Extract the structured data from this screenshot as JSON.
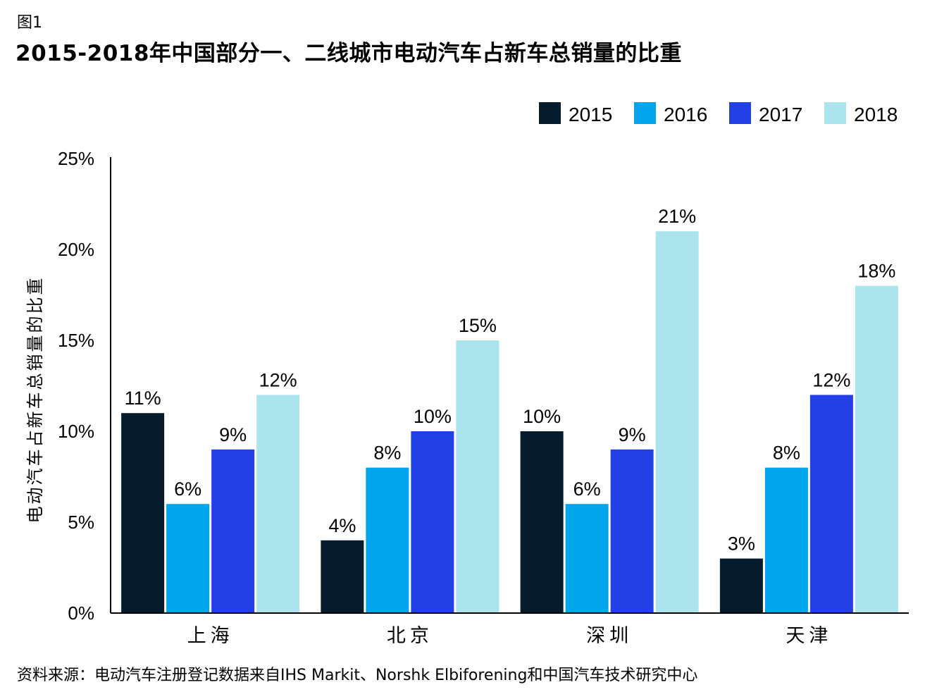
{
  "figure": {
    "label": "图1",
    "title": "2015-2018年中国部分一、二线城市电动汽车占新车总销量的比重",
    "source": "资料来源：电动汽车注册登记数据来自IHS Markit、Norshk Elbiforening和中国汽车技术研究中心"
  },
  "chart_data": {
    "type": "bar",
    "title": "2015-2018年中国部分一、二线城市电动汽车占新车总销量的比重",
    "xlabel": "",
    "ylabel": "电动汽车占新车总销量的比重",
    "categories": [
      "上海",
      "北京",
      "深圳",
      "天津"
    ],
    "series": [
      {
        "name": "2015",
        "color": "#061c2c",
        "values": [
          11,
          4,
          10,
          3
        ],
        "labels": [
          "11%",
          "4%",
          "10%",
          "3%"
        ]
      },
      {
        "name": "2016",
        "color": "#00a5ec",
        "values": [
          6,
          8,
          6,
          8
        ],
        "labels": [
          "6%",
          "8%",
          "6%",
          "8%"
        ]
      },
      {
        "name": "2017",
        "color": "#2340e6",
        "values": [
          9,
          10,
          9,
          12
        ],
        "labels": [
          "9%",
          "10%",
          "9%",
          "12%"
        ]
      },
      {
        "name": "2018",
        "color": "#abe4ed",
        "values": [
          12,
          15,
          21,
          18
        ],
        "labels": [
          "12%",
          "15%",
          "21%",
          "18%"
        ]
      }
    ],
    "ylim": [
      0,
      25
    ],
    "yticks": [
      0,
      5,
      10,
      15,
      20,
      25
    ],
    "ytick_labels": [
      "0%",
      "5%",
      "10%",
      "15%",
      "20%",
      "25%"
    ],
    "legend_position": "top-right",
    "grid": false
  }
}
